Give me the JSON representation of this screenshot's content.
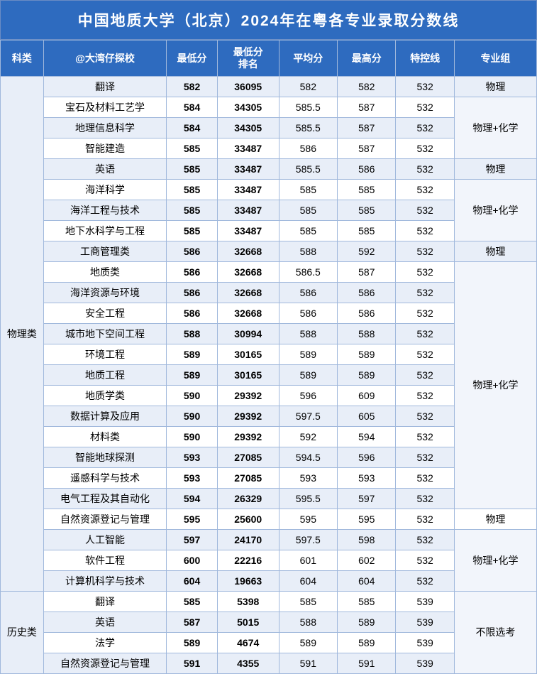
{
  "title": "中国地质大学（北京）2024年在粤各专业录取分数线",
  "columns": [
    "科类",
    "@大湾仔探校",
    "最低分",
    "最低分\n排名",
    "平均分",
    "最高分",
    "特控线",
    "专业组"
  ],
  "categories": [
    {
      "name": "物理类",
      "rowspan": 25
    },
    {
      "name": "历史类",
      "rowspan": 4
    }
  ],
  "groups": [
    {
      "name": "物理",
      "rowspan": 1
    },
    {
      "name": "物理+化学",
      "rowspan": 3
    },
    {
      "name": "物理",
      "rowspan": 1
    },
    {
      "name": "物理+化学",
      "rowspan": 3
    },
    {
      "name": "物理",
      "rowspan": 1
    },
    {
      "name": "物理+化学",
      "rowspan": 12
    },
    {
      "name": "物理",
      "rowspan": 1
    },
    {
      "name": "物理+化学",
      "rowspan": 3
    },
    {
      "name": "不限选考",
      "rowspan": 4
    }
  ],
  "rows": [
    {
      "major": "翻译",
      "min": "582",
      "rank": "36095",
      "avg": "582",
      "max": "582",
      "line": "532"
    },
    {
      "major": "宝石及材料工艺学",
      "min": "584",
      "rank": "34305",
      "avg": "585.5",
      "max": "587",
      "line": "532"
    },
    {
      "major": "地理信息科学",
      "min": "584",
      "rank": "34305",
      "avg": "585.5",
      "max": "587",
      "line": "532"
    },
    {
      "major": "智能建造",
      "min": "585",
      "rank": "33487",
      "avg": "586",
      "max": "587",
      "line": "532"
    },
    {
      "major": "英语",
      "min": "585",
      "rank": "33487",
      "avg": "585.5",
      "max": "586",
      "line": "532"
    },
    {
      "major": "海洋科学",
      "min": "585",
      "rank": "33487",
      "avg": "585",
      "max": "585",
      "line": "532"
    },
    {
      "major": "海洋工程与技术",
      "min": "585",
      "rank": "33487",
      "avg": "585",
      "max": "585",
      "line": "532"
    },
    {
      "major": "地下水科学与工程",
      "min": "585",
      "rank": "33487",
      "avg": "585",
      "max": "585",
      "line": "532"
    },
    {
      "major": "工商管理类",
      "min": "586",
      "rank": "32668",
      "avg": "588",
      "max": "592",
      "line": "532"
    },
    {
      "major": "地质类",
      "min": "586",
      "rank": "32668",
      "avg": "586.5",
      "max": "587",
      "line": "532"
    },
    {
      "major": "海洋资源与环境",
      "min": "586",
      "rank": "32668",
      "avg": "586",
      "max": "586",
      "line": "532"
    },
    {
      "major": "安全工程",
      "min": "586",
      "rank": "32668",
      "avg": "586",
      "max": "586",
      "line": "532"
    },
    {
      "major": "城市地下空间工程",
      "min": "588",
      "rank": "30994",
      "avg": "588",
      "max": "588",
      "line": "532"
    },
    {
      "major": "环境工程",
      "min": "589",
      "rank": "30165",
      "avg": "589",
      "max": "589",
      "line": "532"
    },
    {
      "major": "地质工程",
      "min": "589",
      "rank": "30165",
      "avg": "589",
      "max": "589",
      "line": "532"
    },
    {
      "major": "地质学类",
      "min": "590",
      "rank": "29392",
      "avg": "596",
      "max": "609",
      "line": "532"
    },
    {
      "major": "数据计算及应用",
      "min": "590",
      "rank": "29392",
      "avg": "597.5",
      "max": "605",
      "line": "532"
    },
    {
      "major": "材料类",
      "min": "590",
      "rank": "29392",
      "avg": "592",
      "max": "594",
      "line": "532"
    },
    {
      "major": "智能地球探测",
      "min": "593",
      "rank": "27085",
      "avg": "594.5",
      "max": "596",
      "line": "532"
    },
    {
      "major": "遥感科学与技术",
      "min": "593",
      "rank": "27085",
      "avg": "593",
      "max": "593",
      "line": "532"
    },
    {
      "major": "电气工程及其自动化",
      "min": "594",
      "rank": "26329",
      "avg": "595.5",
      "max": "597",
      "line": "532"
    },
    {
      "major": "自然资源登记与管理",
      "min": "595",
      "rank": "25600",
      "avg": "595",
      "max": "595",
      "line": "532"
    },
    {
      "major": "人工智能",
      "min": "597",
      "rank": "24170",
      "avg": "597.5",
      "max": "598",
      "line": "532"
    },
    {
      "major": "软件工程",
      "min": "600",
      "rank": "22216",
      "avg": "601",
      "max": "602",
      "line": "532"
    },
    {
      "major": "计算机科学与技术",
      "min": "604",
      "rank": "19663",
      "avg": "604",
      "max": "604",
      "line": "532"
    },
    {
      "major": "翻译",
      "min": "585",
      "rank": "5398",
      "avg": "585",
      "max": "585",
      "line": "539"
    },
    {
      "major": "英语",
      "min": "587",
      "rank": "5015",
      "avg": "588",
      "max": "589",
      "line": "539"
    },
    {
      "major": "法学",
      "min": "589",
      "rank": "4674",
      "avg": "589",
      "max": "589",
      "line": "539"
    },
    {
      "major": "自然资源登记与管理",
      "min": "591",
      "rank": "4355",
      "avg": "591",
      "max": "591",
      "line": "539"
    }
  ],
  "colors": {
    "header_bg": "#2e6bbf",
    "header_fg": "#ffffff",
    "border": "#a0b8dc",
    "row_even": "#e8eef8",
    "row_odd": "#ffffff"
  }
}
